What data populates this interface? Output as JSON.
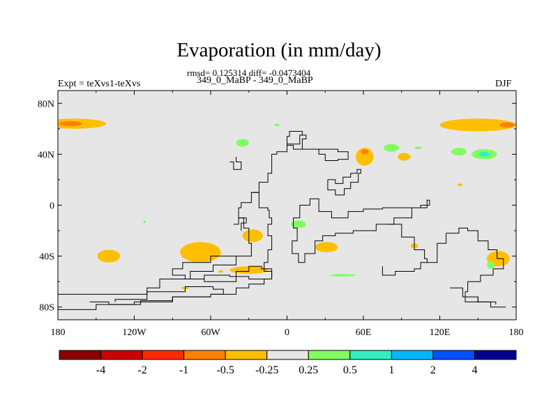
{
  "chart_data": {
    "type": "contour-map",
    "title": "Evaporation (in mm/day)",
    "stats_label": "rmsd= 0.125314 diff= -0.0473404",
    "subtitle": "349_0_MaBP - 349_0_MaBP",
    "left_label": "Expt = teXvs1-teXvs",
    "right_label": "DJF",
    "x_ticks": [
      {
        "lon": -180,
        "label": "180"
      },
      {
        "lon": -120,
        "label": "120W"
      },
      {
        "lon": -60,
        "label": "60W"
      },
      {
        "lon": 0,
        "label": "0"
      },
      {
        "lon": 60,
        "label": "60E"
      },
      {
        "lon": 120,
        "label": "120E"
      },
      {
        "lon": 180,
        "label": "180"
      }
    ],
    "y_ticks": [
      {
        "lat": 80,
        "label": "80N"
      },
      {
        "lat": 40,
        "label": "40N"
      },
      {
        "lat": 0,
        "label": "0"
      },
      {
        "lat": -40,
        "label": "40S"
      },
      {
        "lat": -80,
        "label": "80S"
      }
    ],
    "xlim": [
      -180,
      180
    ],
    "ylim": [
      -90,
      90
    ],
    "colorbar": {
      "colors": [
        "#8b0000",
        "#cc0000",
        "#ff2a00",
        "#ff7f00",
        "#ffbf00",
        "#e6e6e6",
        "#80ff60",
        "#30f0c0",
        "#00b8ff",
        "#0050ff",
        "#000090"
      ],
      "labels": [
        "-4",
        "-2",
        "-1",
        "-0.5",
        "-0.25",
        "0.25",
        "0.5",
        "1",
        "2",
        "4"
      ]
    },
    "anomaly_patches": [
      {
        "lon": -167,
        "lat": 64,
        "rx": 25,
        "ry": 4,
        "level": "-0.25"
      },
      {
        "lon": -170,
        "lat": 64,
        "rx": 9,
        "ry": 2,
        "level": "-0.5"
      },
      {
        "lon": 150,
        "lat": 63,
        "rx": 30,
        "ry": 5,
        "level": "-0.25"
      },
      {
        "lon": 173,
        "lat": 63,
        "rx": 6,
        "ry": 2,
        "level": "-0.5"
      },
      {
        "lon": 61,
        "lat": 38,
        "rx": 7,
        "ry": 7,
        "level": "-0.25"
      },
      {
        "lon": 61,
        "lat": 42,
        "rx": 3,
        "ry": 2,
        "level": "-0.5"
      },
      {
        "lon": 92,
        "lat": 38,
        "rx": 5,
        "ry": 3,
        "level": "-0.25"
      },
      {
        "lon": 136,
        "lat": 16,
        "rx": 2,
        "ry": 1,
        "level": "-0.25"
      },
      {
        "lon": -140,
        "lat": -40,
        "rx": 9,
        "ry": 5,
        "level": "-0.25"
      },
      {
        "lon": -68,
        "lat": -37,
        "rx": 16,
        "ry": 8,
        "level": "-0.25"
      },
      {
        "lon": -27,
        "lat": -24,
        "rx": 8,
        "ry": 5,
        "level": "-0.25"
      },
      {
        "lon": -30,
        "lat": -51,
        "rx": 15,
        "ry": 3,
        "level": "-0.25"
      },
      {
        "lon": 31,
        "lat": -33,
        "rx": 9,
        "ry": 4,
        "level": "-0.25"
      },
      {
        "lon": 100,
        "lat": -32,
        "rx": 3,
        "ry": 2,
        "level": "-0.25"
      },
      {
        "lon": 166,
        "lat": -42,
        "rx": 9,
        "ry": 6,
        "level": "-0.25"
      },
      {
        "lon": -80,
        "lat": -65,
        "rx": 3,
        "ry": 1,
        "level": "-0.25"
      },
      {
        "lon": -52,
        "lat": -52,
        "rx": 2,
        "ry": 1,
        "level": "-0.25"
      },
      {
        "lon": -35,
        "lat": 49,
        "rx": 5,
        "ry": 3,
        "level": "0.25"
      },
      {
        "lon": -8,
        "lat": 63,
        "rx": 2,
        "ry": 1,
        "level": "0.25"
      },
      {
        "lon": 82,
        "lat": 45,
        "rx": 6,
        "ry": 3,
        "level": "0.25"
      },
      {
        "lon": 103,
        "lat": 45,
        "rx": 3,
        "ry": 1,
        "level": "0.25"
      },
      {
        "lon": 155,
        "lat": 40,
        "rx": 10,
        "ry": 4,
        "level": "0.25"
      },
      {
        "lon": 135,
        "lat": 42,
        "rx": 6,
        "ry": 3,
        "level": "0.25"
      },
      {
        "lon": 155,
        "lat": 40,
        "rx": 4,
        "ry": 2,
        "level": "0.5"
      },
      {
        "lon": 9,
        "lat": -15,
        "rx": 6,
        "ry": 3,
        "level": "0.25"
      },
      {
        "lon": 160,
        "lat": -47,
        "rx": 3,
        "ry": 3,
        "level": "0.25"
      },
      {
        "lon": 44,
        "lat": -55,
        "rx": 10,
        "ry": 1,
        "level": "0.25"
      },
      {
        "lon": -112,
        "lat": -13,
        "rx": 1,
        "ry": 1,
        "level": "0.25"
      }
    ],
    "coastline_outlines": [
      {
        "points": [
          [
            -180,
            -70
          ],
          [
            -140,
            -70
          ],
          [
            -110,
            -65
          ],
          [
            -100,
            -58
          ],
          [
            -76,
            -52
          ],
          [
            -58,
            -47
          ],
          [
            -40,
            -40
          ],
          [
            -28,
            -30
          ],
          [
            -30,
            -18
          ],
          [
            -34,
            -10
          ],
          [
            -38,
            -2
          ],
          [
            -36,
            2
          ],
          [
            -28,
            10
          ],
          [
            -22,
            8
          ],
          [
            -22,
            -2
          ],
          [
            -15,
            -4
          ],
          [
            -14,
            -10
          ],
          [
            -12,
            -15
          ],
          [
            -15,
            -24
          ],
          [
            -12,
            -35
          ],
          [
            -15,
            -45
          ],
          [
            -18,
            -52
          ],
          [
            -12,
            -58
          ],
          [
            -18,
            -62
          ],
          [
            -30,
            -65
          ],
          [
            -40,
            -70
          ],
          [
            -60,
            -72
          ],
          [
            -90,
            -75
          ],
          [
            -115,
            -78
          ],
          [
            -150,
            -82
          ],
          [
            -180,
            -82
          ]
        ]
      },
      {
        "points": [
          [
            -40,
            -40
          ],
          [
            -60,
            -45
          ],
          [
            -82,
            -50
          ],
          [
            -90,
            -55
          ],
          [
            -80,
            -58
          ],
          [
            -65,
            -60
          ],
          [
            -50,
            -60
          ],
          [
            -40,
            -52
          ],
          [
            -30,
            -48
          ],
          [
            -20,
            -50
          ],
          [
            -12,
            -52
          ],
          [
            -12,
            -58
          ],
          [
            -30,
            -56
          ],
          [
            -45,
            -55
          ],
          [
            -65,
            -58
          ]
        ]
      },
      {
        "points": [
          [
            -155,
            -76
          ],
          [
            -140,
            -78
          ],
          [
            -120,
            -76
          ],
          [
            -90,
            -72
          ],
          [
            -60,
            -70
          ],
          [
            -50,
            -66
          ],
          [
            -58,
            -64
          ],
          [
            -80,
            -68
          ],
          [
            -110,
            -74
          ],
          [
            -135,
            -76
          ]
        ]
      },
      {
        "points": [
          [
            -28,
            10
          ],
          [
            -22,
            18
          ],
          [
            -15,
            25
          ],
          [
            -12,
            40
          ],
          [
            -8,
            42
          ],
          [
            0,
            48
          ],
          [
            10,
            55
          ],
          [
            15,
            52
          ],
          [
            12,
            44
          ],
          [
            25,
            40
          ],
          [
            30,
            35
          ],
          [
            40,
            36
          ],
          [
            48,
            42
          ],
          [
            40,
            44
          ],
          [
            25,
            44
          ],
          [
            15,
            44
          ],
          [
            5,
            47
          ],
          [
            0,
            54
          ],
          [
            2,
            58
          ],
          [
            12,
            55
          ],
          [
            10,
            48
          ]
        ]
      },
      {
        "points": [
          [
            32,
            20
          ],
          [
            38,
            17
          ],
          [
            44,
            22
          ],
          [
            50,
            25
          ],
          [
            55,
            28
          ],
          [
            58,
            25
          ],
          [
            56,
            18
          ],
          [
            50,
            13
          ],
          [
            45,
            8
          ],
          [
            38,
            12
          ],
          [
            32,
            20
          ]
        ]
      },
      {
        "points": [
          [
            10,
            0
          ],
          [
            18,
            5
          ],
          [
            25,
            -5
          ],
          [
            35,
            -10
          ],
          [
            48,
            -5
          ],
          [
            60,
            -3
          ],
          [
            75,
            -2
          ],
          [
            90,
            -2
          ],
          [
            105,
            0
          ],
          [
            112,
            4
          ],
          [
            110,
            -2
          ],
          [
            98,
            -10
          ],
          [
            84,
            -15
          ],
          [
            70,
            -20
          ],
          [
            52,
            -22
          ],
          [
            38,
            -24
          ],
          [
            28,
            -28
          ],
          [
            22,
            -38
          ],
          [
            14,
            -45
          ],
          [
            9,
            -38
          ],
          [
            4,
            -28
          ],
          [
            8,
            -18
          ],
          [
            5,
            -10
          ],
          [
            10,
            0
          ]
        ]
      },
      {
        "points": [
          [
            80,
            -15
          ],
          [
            90,
            -25
          ],
          [
            100,
            -35
          ],
          [
            108,
            -42
          ],
          [
            110,
            -45
          ],
          [
            105,
            -50
          ],
          [
            100,
            -52
          ],
          [
            85,
            -55
          ],
          [
            75,
            -48
          ]
        ]
      },
      {
        "points": [
          [
            110,
            -45
          ],
          [
            118,
            -30
          ],
          [
            125,
            -22
          ],
          [
            135,
            -18
          ],
          [
            142,
            -20
          ],
          [
            150,
            -28
          ],
          [
            158,
            -35
          ],
          [
            165,
            -42
          ],
          [
            170,
            -50
          ],
          [
            162,
            -55
          ],
          [
            152,
            -60
          ],
          [
            142,
            -68
          ],
          [
            140,
            -76
          ],
          [
            160,
            -80
          ],
          [
            172,
            -80
          ],
          [
            160,
            -76
          ],
          [
            150,
            -72
          ]
        ]
      },
      {
        "points": [
          [
            -42,
            -15
          ],
          [
            -38,
            -10
          ],
          [
            -32,
            -14
          ],
          [
            -36,
            -20
          ]
        ]
      },
      {
        "points": [
          [
            -45,
            34
          ],
          [
            -42,
            28
          ],
          [
            -36,
            34
          ],
          [
            -40,
            38
          ]
        ]
      },
      {
        "points": [
          [
            128,
            -65
          ],
          [
            138,
            -72
          ],
          [
            150,
            -76
          ],
          [
            164,
            -78
          ]
        ]
      }
    ]
  }
}
